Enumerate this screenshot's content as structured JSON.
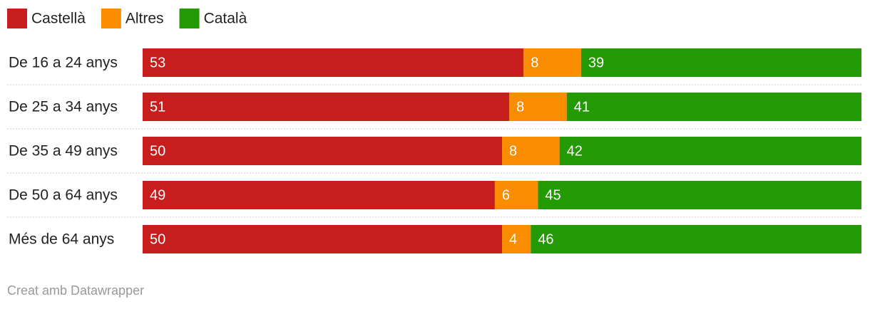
{
  "chart_data": {
    "type": "stacked-bar-horizontal",
    "categories": [
      "De 16 a 24 anys",
      "De 25 a 34 anys",
      "De 35 a 49 anys",
      "De 50 a 64 anys",
      "Més de 64 anys"
    ],
    "series": [
      {
        "name": "Castellà",
        "color": "#c71e1d",
        "values": [
          53,
          51,
          50,
          49,
          50
        ]
      },
      {
        "name": "Altres",
        "color": "#fa8c00",
        "values": [
          8,
          8,
          8,
          6,
          4
        ]
      },
      {
        "name": "Català",
        "color": "#239a04",
        "values": [
          39,
          41,
          42,
          45,
          46
        ]
      }
    ],
    "footer": "Creat amb Datawrapper"
  }
}
